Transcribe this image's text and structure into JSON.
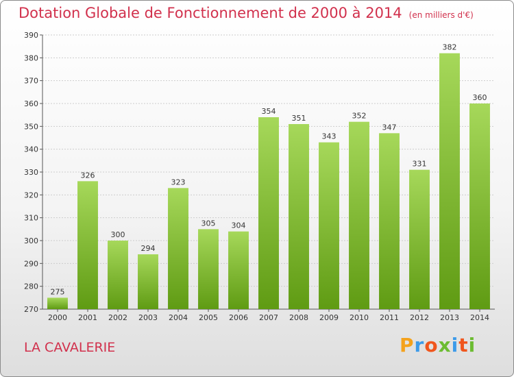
{
  "header": {
    "title": "Dotation Globale de Fonctionnement de 2000 à 2014",
    "subtitle": "(en milliers d'€)"
  },
  "footer": {
    "commune": "LA CAVALERIE",
    "logo": [
      "P",
      "r",
      "o",
      "x",
      "i",
      "t",
      "i"
    ],
    "logo_colors": [
      "#f4a21c",
      "#3d9be9",
      "#f0561d",
      "#6cbc32",
      "#3d9be9",
      "#f0561d",
      "#6cbc32"
    ]
  },
  "colors": {
    "bar_top": "#a6d85a",
    "bar_bottom": "#5f9b13",
    "grid": "#cccccc",
    "accent": "#d1304c"
  },
  "chart_data": {
    "type": "bar",
    "title": "Dotation Globale de Fonctionnement de 2000 à 2014",
    "subtitle": "(en milliers d'€)",
    "categories": [
      "2000",
      "2001",
      "2002",
      "2003",
      "2004",
      "2005",
      "2006",
      "2007",
      "2008",
      "2009",
      "2010",
      "2011",
      "2012",
      "2013",
      "2014"
    ],
    "values": [
      275,
      326,
      300,
      294,
      323,
      305,
      304,
      354,
      351,
      343,
      352,
      347,
      331,
      382,
      360
    ],
    "ylim": [
      270,
      390
    ],
    "yticks": [
      270,
      280,
      290,
      300,
      310,
      320,
      330,
      340,
      350,
      360,
      370,
      380,
      390
    ],
    "grid": true,
    "xlabel": "",
    "ylabel": ""
  }
}
